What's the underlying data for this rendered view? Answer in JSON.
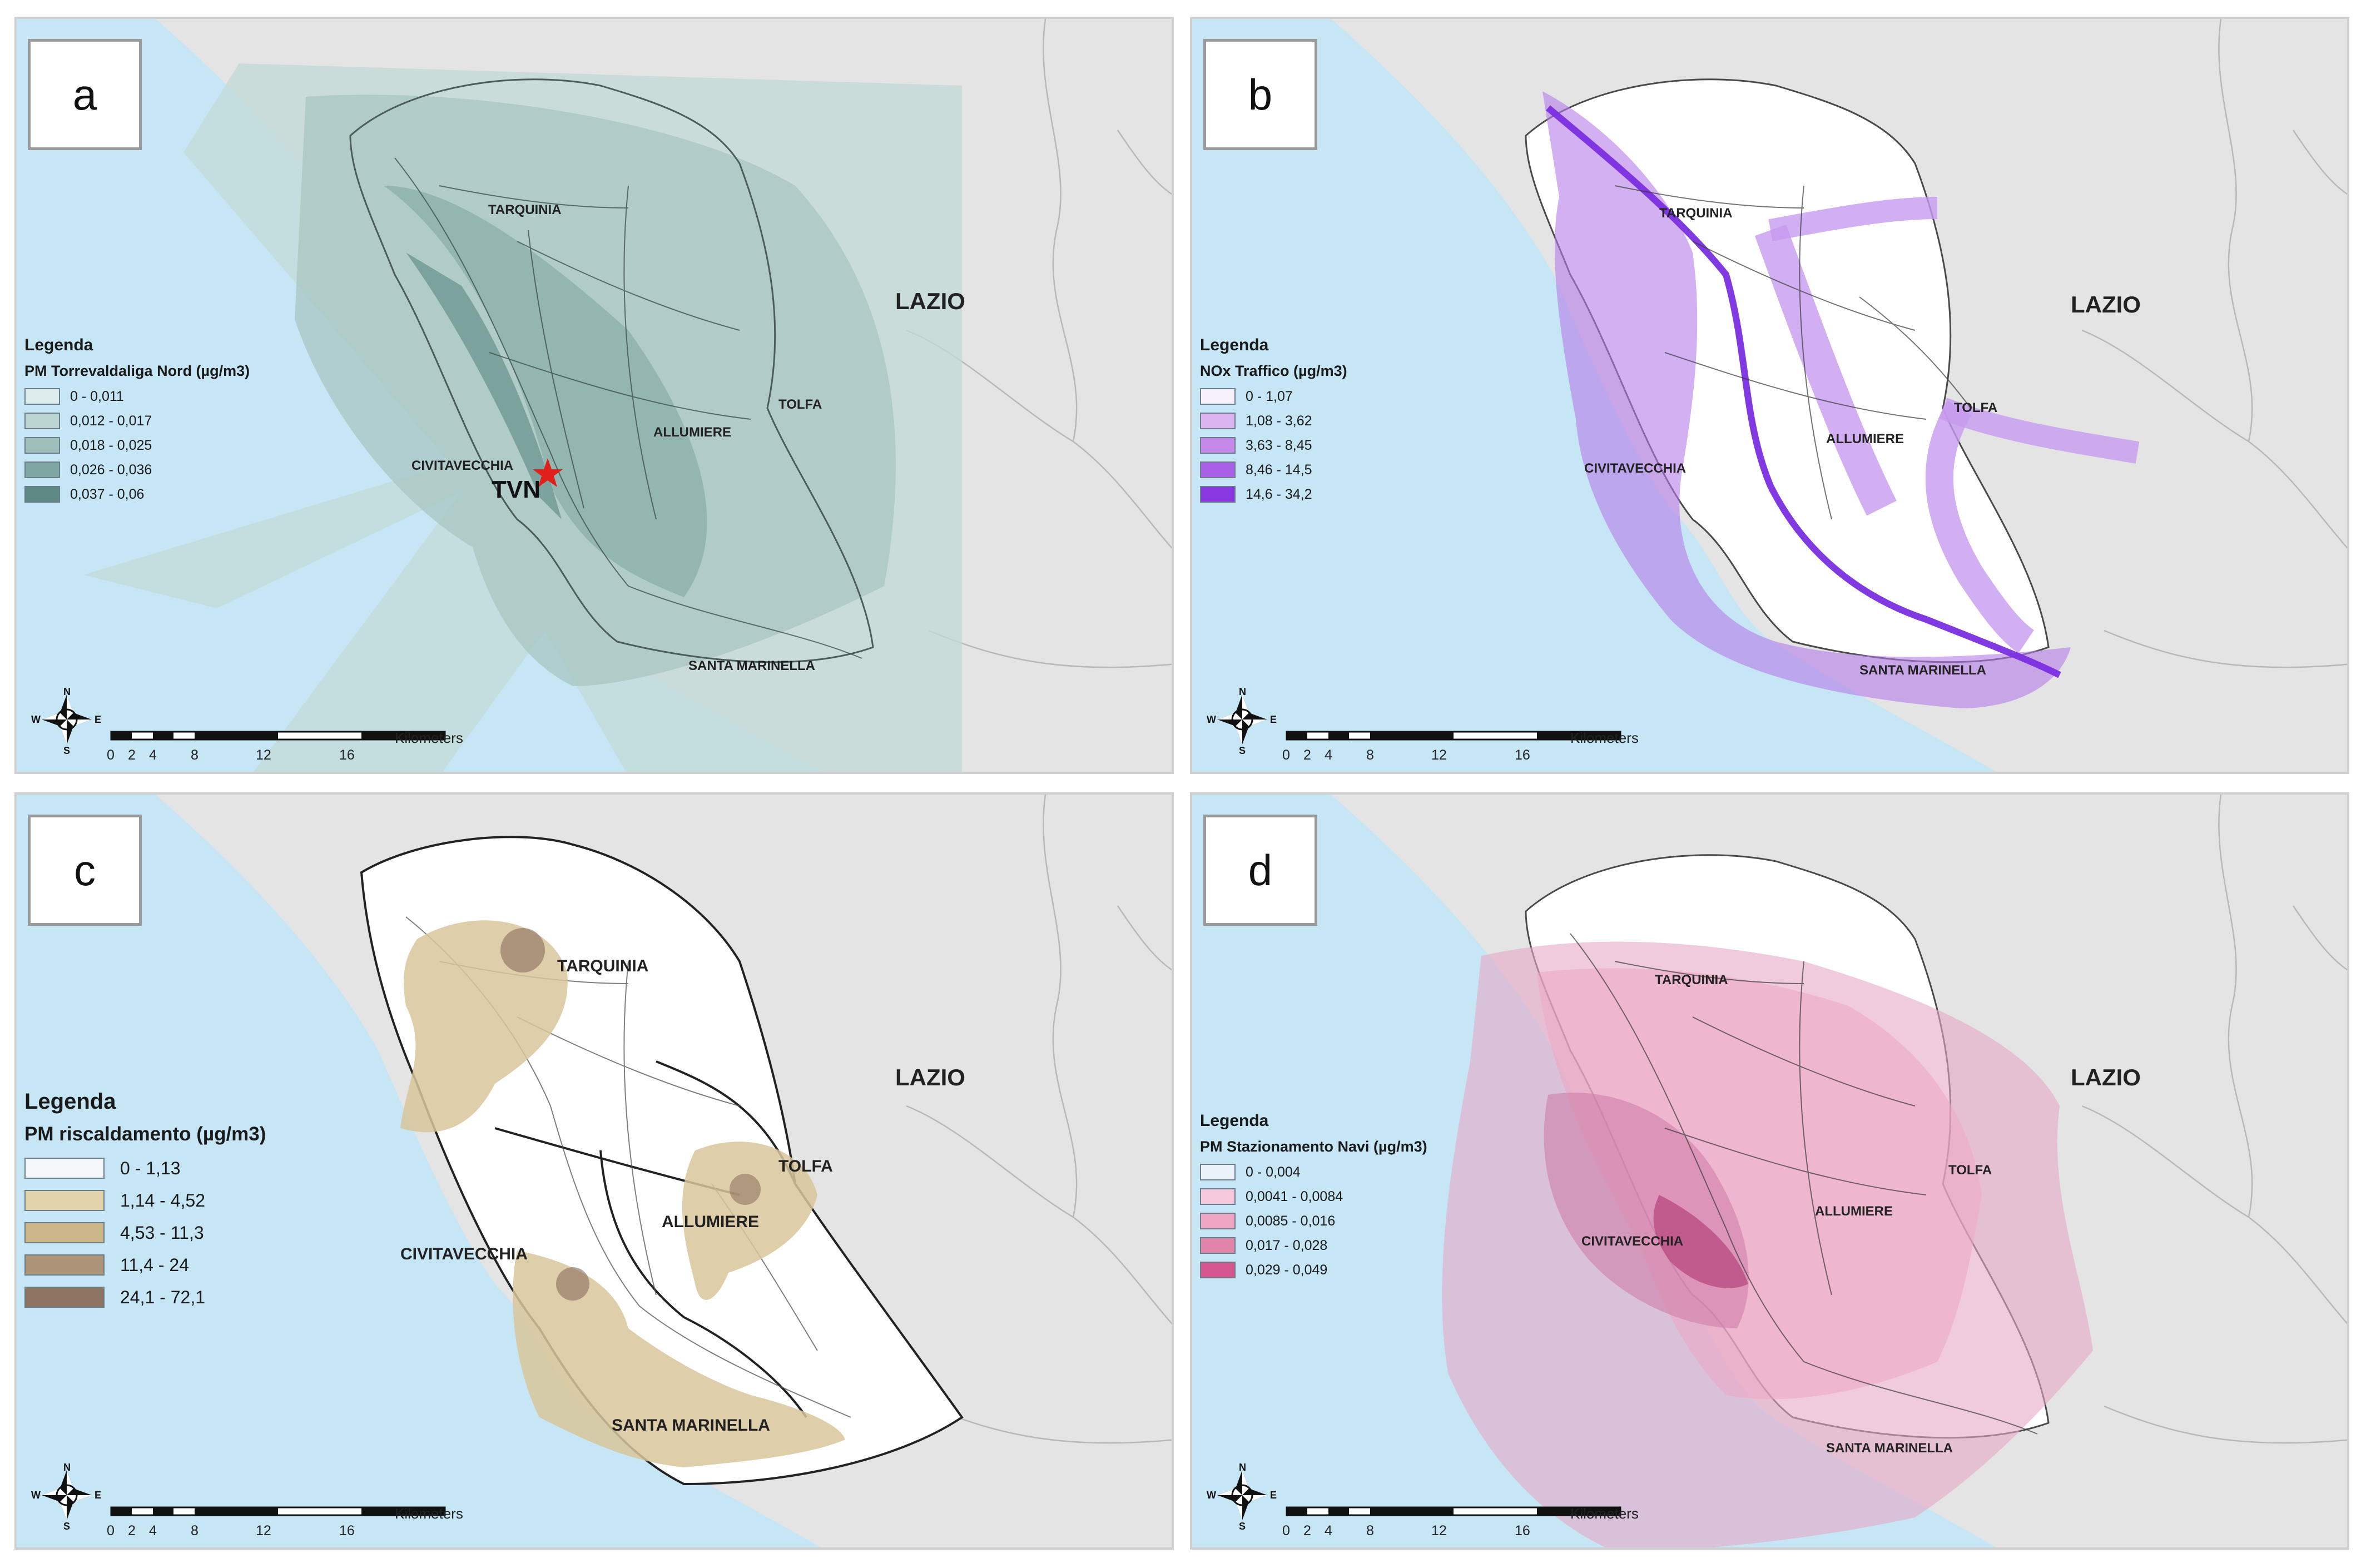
{
  "panels": {
    "a": {
      "label": "a",
      "region": "LAZIO",
      "towns": {
        "tarquinia": "TARQUINIA",
        "civitavecchia": "CIVITAVECCHIA",
        "allumiere": "ALLUMIERE",
        "tolfa": "TOLFA",
        "santa_marinella": "SANTA MARINELLA"
      },
      "marker": "TVN",
      "legend": {
        "title": "Legenda",
        "subtitle": "PM Torrevaldaliga Nord (µg/m3)",
        "classes": [
          {
            "range": "0 - 0,011",
            "color": "#dcecec"
          },
          {
            "range": "0,012 - 0,017",
            "color": "#bcd4d2"
          },
          {
            "range": "0,018 - 0,025",
            "color": "#9fbfbb"
          },
          {
            "range": "0,026 - 0,036",
            "color": "#7fa6a2"
          },
          {
            "range": "0,037 - 0,06",
            "color": "#5e8883"
          }
        ]
      }
    },
    "b": {
      "label": "b",
      "region": "LAZIO",
      "towns": {
        "tarquinia": "TARQUINIA",
        "civitavecchia": "CIVITAVECCHIA",
        "allumiere": "ALLUMIERE",
        "tolfa": "TOLFA",
        "santa_marinella": "SANTA MARINELLA"
      },
      "legend": {
        "title": "Legenda",
        "subtitle": "NOx Traffico (µg/m3)",
        "classes": [
          {
            "range": "0 - 1,07",
            "color": "#f6f0fb"
          },
          {
            "range": "1,08 - 3,62",
            "color": "#dcb4f0"
          },
          {
            "range": "3,63 - 8,45",
            "color": "#c58ae9"
          },
          {
            "range": "8,46 - 14,5",
            "color": "#a95fe6"
          },
          {
            "range": "14,6 - 34,2",
            "color": "#8a39e0"
          }
        ]
      }
    },
    "c": {
      "label": "c",
      "region": "LAZIO",
      "towns": {
        "tarquinia": "TARQUINIA",
        "civitavecchia": "CIVITAVECCHIA",
        "allumiere": "ALLUMIERE",
        "tolfa": "TOLFA",
        "santa_marinella": "SANTA MARINELLA"
      },
      "legend": {
        "title": "Legenda",
        "subtitle": "PM riscaldamento (µg/m3)",
        "classes": [
          {
            "range": "0 - 1,13",
            "color": "#f4f7fa"
          },
          {
            "range": "1,14 - 4,52",
            "color": "#e2d3ad"
          },
          {
            "range": "4,53 - 11,3",
            "color": "#ccb589"
          },
          {
            "range": "11,4 - 24",
            "color": "#ad9478"
          },
          {
            "range": "24,1 - 72,1",
            "color": "#8f7463"
          }
        ]
      }
    },
    "d": {
      "label": "d",
      "region": "LAZIO",
      "towns": {
        "tarquinia": "TARQUINIA",
        "civitavecchia": "CIVITAVECCHIA",
        "allumiere": "ALLUMIERE",
        "tolfa": "TOLFA",
        "santa_marinella": "SANTA MARINELLA"
      },
      "legend": {
        "title": "Legenda",
        "subtitle": "PM Stazionamento Navi (µg/m3)",
        "classes": [
          {
            "range": "0 - 0,004",
            "color": "#e8f2f8"
          },
          {
            "range": "0,0041 - 0,0084",
            "color": "#f6c8dc"
          },
          {
            "range": "0,0085 - 0,016",
            "color": "#eea6c4"
          },
          {
            "range": "0,017 - 0,028",
            "color": "#e284aa"
          },
          {
            "range": "0,029 - 0,049",
            "color": "#d4588f"
          }
        ]
      }
    }
  },
  "scale_bar": {
    "unit": "Kilometers",
    "ticks": [
      "0",
      "2",
      "4",
      "8",
      "12",
      "16"
    ]
  },
  "compass": {
    "n": "N",
    "s": "S",
    "e": "E",
    "w": "W"
  },
  "colors": {
    "sea": "#c6e6f6",
    "land": "#e4e4e4",
    "boundary": "#b8b8b8",
    "municipality_fill": "#ffffff"
  }
}
